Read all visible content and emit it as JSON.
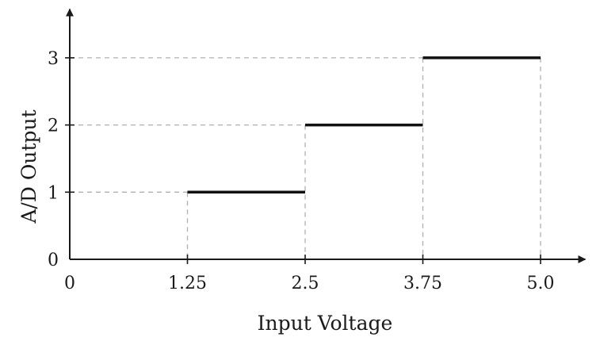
{
  "chart_data": {
    "type": "line",
    "subtype": "step",
    "title": "",
    "xlabel": "Input Voltage",
    "ylabel": "A/D Output",
    "x_ticks": [
      "0",
      "1.25",
      "2.5",
      "3.75",
      "5.0"
    ],
    "x_tick_values": [
      0,
      1.25,
      2.5,
      3.75,
      5.0
    ],
    "y_ticks": [
      "0",
      "1",
      "2",
      "3"
    ],
    "y_tick_values": [
      0,
      1,
      2,
      3
    ],
    "xlim": [
      0,
      5.5
    ],
    "ylim": [
      0,
      3.7
    ],
    "grid": false,
    "guide_lines": "dashed",
    "series": [
      {
        "segments": [
          {
            "x_start": 1.25,
            "x_end": 2.5,
            "y": 1
          },
          {
            "x_start": 2.5,
            "x_end": 3.75,
            "y": 2
          },
          {
            "x_start": 3.75,
            "x_end": 5.0,
            "y": 3
          }
        ]
      }
    ],
    "colors": {
      "axis": "#1a1a1a",
      "step": "#111111",
      "guide": "#b0b0b0"
    }
  }
}
